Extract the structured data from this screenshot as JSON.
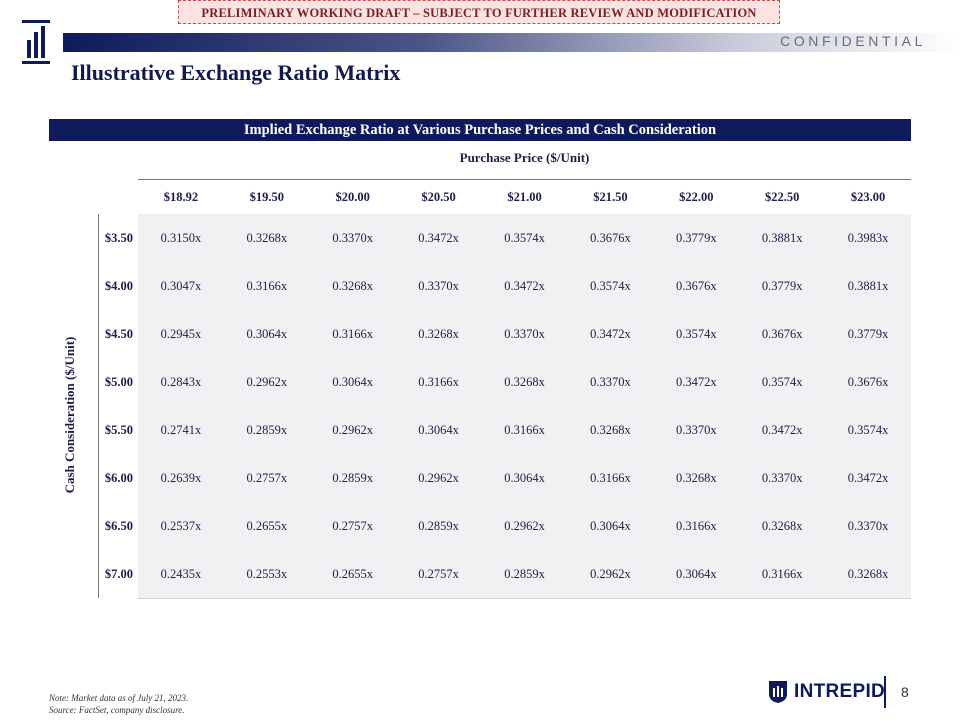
{
  "draft_banner": "PRELIMINARY WORKING DRAFT – SUBJECT TO FURTHER REVIEW AND MODIFICATION",
  "confidential": "CONFIDENTIAL",
  "title": "Illustrative Exchange Ratio Matrix",
  "table": {
    "header": "Implied Exchange Ratio at Various Purchase Prices and Cash Consideration",
    "column_group_label": "Purchase Price ($/Unit)",
    "row_group_label": "Cash Consideration ($/Unit)",
    "purchase_prices": [
      "$18.92",
      "$19.50",
      "$20.00",
      "$20.50",
      "$21.00",
      "$21.50",
      "$22.00",
      "$22.50",
      "$23.00"
    ],
    "cash_considerations": [
      "$3.50",
      "$4.00",
      "$4.50",
      "$5.00",
      "$5.50",
      "$6.00",
      "$6.50",
      "$7.00"
    ],
    "rows": [
      [
        "0.3150x",
        "0.3268x",
        "0.3370x",
        "0.3472x",
        "0.3574x",
        "0.3676x",
        "0.3779x",
        "0.3881x",
        "0.3983x"
      ],
      [
        "0.3047x",
        "0.3166x",
        "0.3268x",
        "0.3370x",
        "0.3472x",
        "0.3574x",
        "0.3676x",
        "0.3779x",
        "0.3881x"
      ],
      [
        "0.2945x",
        "0.3064x",
        "0.3166x",
        "0.3268x",
        "0.3370x",
        "0.3472x",
        "0.3574x",
        "0.3676x",
        "0.3779x"
      ],
      [
        "0.2843x",
        "0.2962x",
        "0.3064x",
        "0.3166x",
        "0.3268x",
        "0.3370x",
        "0.3472x",
        "0.3574x",
        "0.3676x"
      ],
      [
        "0.2741x",
        "0.2859x",
        "0.2962x",
        "0.3064x",
        "0.3166x",
        "0.3268x",
        "0.3370x",
        "0.3472x",
        "0.3574x"
      ],
      [
        "0.2639x",
        "0.2757x",
        "0.2859x",
        "0.2962x",
        "0.3064x",
        "0.3166x",
        "0.3268x",
        "0.3370x",
        "0.3472x"
      ],
      [
        "0.2537x",
        "0.2655x",
        "0.2757x",
        "0.2859x",
        "0.2962x",
        "0.3064x",
        "0.3166x",
        "0.3268x",
        "0.3370x"
      ],
      [
        "0.2435x",
        "0.2553x",
        "0.2655x",
        "0.2757x",
        "0.2859x",
        "0.2962x",
        "0.3064x",
        "0.3166x",
        "0.3268x"
      ]
    ]
  },
  "footnotes": {
    "note": "Note: Market data as of July 21, 2023.",
    "source": "Source: FactSet, company disclosure."
  },
  "brand": {
    "name": "INTREPID",
    "logo_icon": "intrepid-shield-logo"
  },
  "page_number": "8",
  "colors": {
    "navy": "#0f1a5c",
    "matrix_bg": "#f1f1f3",
    "banner_border": "#c0504d",
    "banner_bg": "#fbe3e3"
  }
}
